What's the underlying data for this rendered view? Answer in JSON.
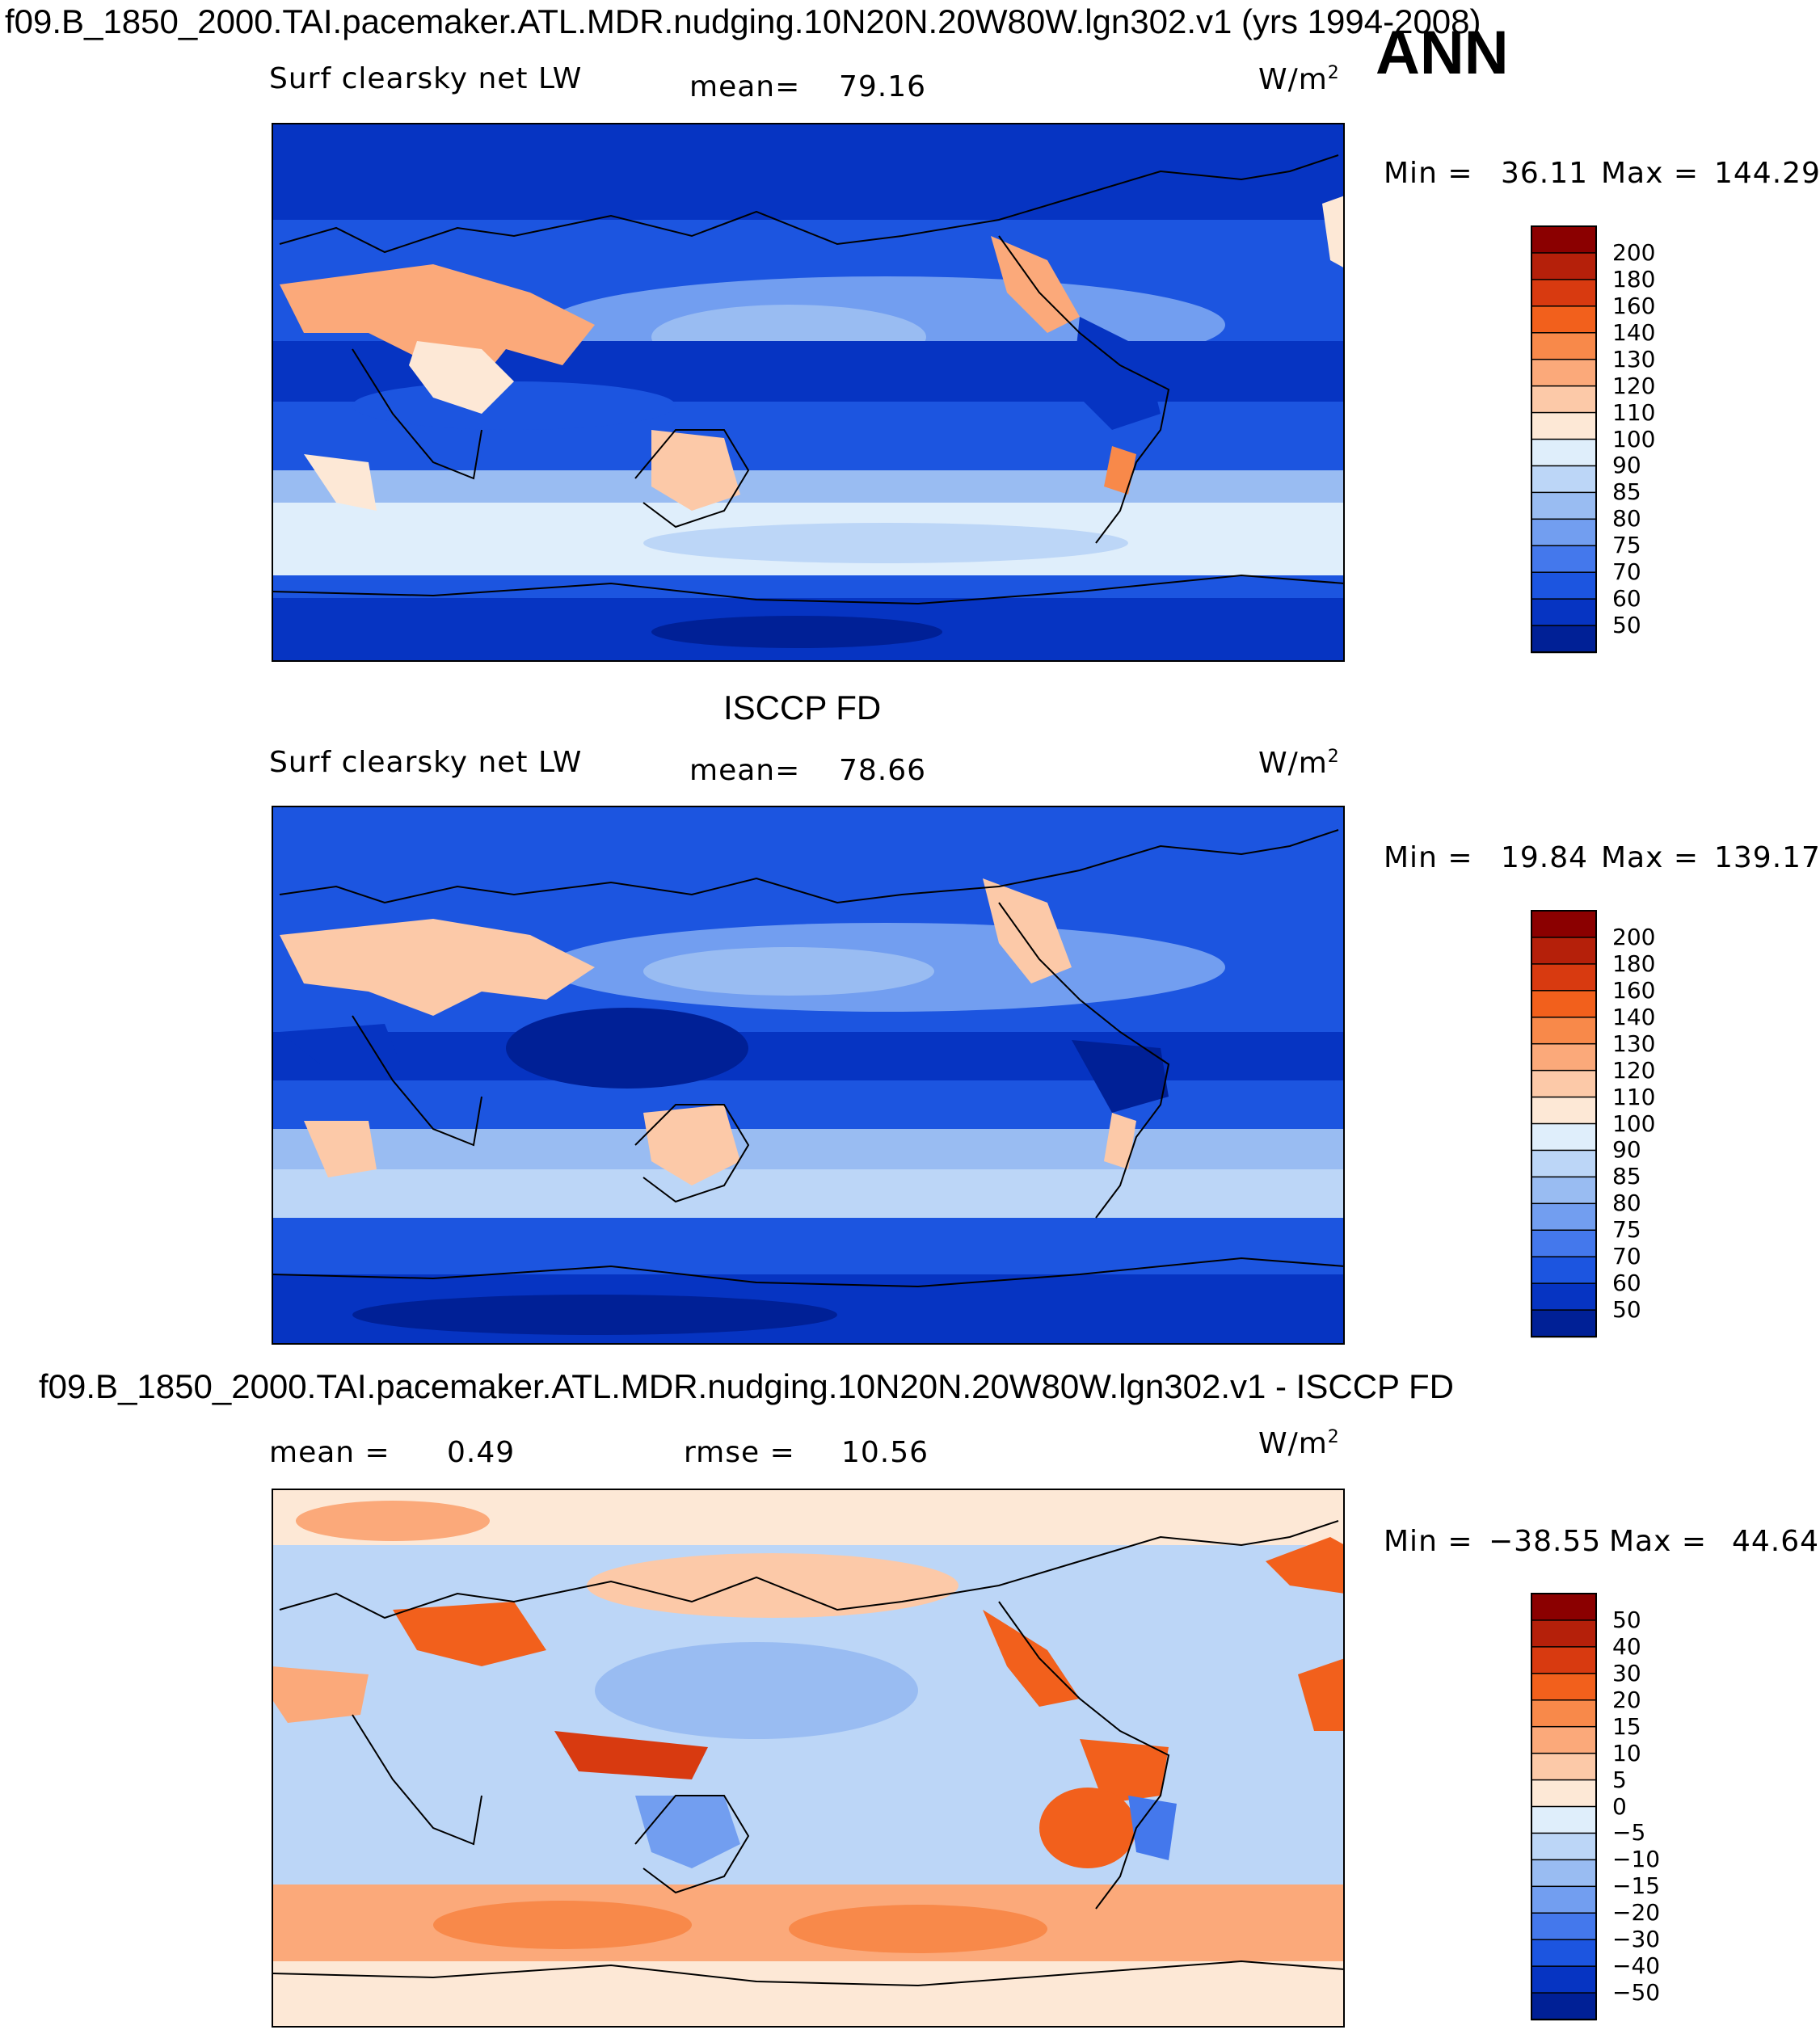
{
  "header": {
    "title": "f09.B_1850_2000.TAI.pacemaker.ATL.MDR.nudging.10N20N.20W80W.lgn302.v1 (yrs 1994-2008)",
    "season": "ANN"
  },
  "chart_data": [
    {
      "type": "heatmap",
      "title": "",
      "variable": "Surf clearsky net LW",
      "mean_label": "mean=",
      "mean": "79.16",
      "units": "W/m",
      "units_sup": "2",
      "min_label": "Min =",
      "min": "36.11",
      "max_label": "Max =",
      "max": "144.29",
      "colorbar": {
        "labels": [
          "200",
          "180",
          "160",
          "140",
          "130",
          "120",
          "110",
          "100",
          "90",
          "85",
          "80",
          "75",
          "70",
          "60",
          "50"
        ],
        "colors": [
          "#8b0000",
          "#b5200a",
          "#d83a10",
          "#f2601c",
          "#f8894a",
          "#fba97a",
          "#fcc9a8",
          "#fde8d6",
          "#dfeefb",
          "#bcd6f7",
          "#99bcf2",
          "#729ef0",
          "#4478ec",
          "#1c55e0",
          "#0634c2",
          "#002096"
        ]
      }
    },
    {
      "type": "heatmap",
      "title": "ISCCP FD",
      "variable": "Surf clearsky net LW",
      "mean_label": "mean=",
      "mean": "78.66",
      "units": "W/m",
      "units_sup": "2",
      "min_label": "Min =",
      "min": "19.84",
      "max_label": "Max =",
      "max": "139.17",
      "colorbar": {
        "labels": [
          "200",
          "180",
          "160",
          "140",
          "130",
          "120",
          "110",
          "100",
          "90",
          "85",
          "80",
          "75",
          "70",
          "60",
          "50"
        ],
        "colors": [
          "#8b0000",
          "#b5200a",
          "#d83a10",
          "#f2601c",
          "#f8894a",
          "#fba97a",
          "#fcc9a8",
          "#fde8d6",
          "#dfeefb",
          "#bcd6f7",
          "#99bcf2",
          "#729ef0",
          "#4478ec",
          "#1c55e0",
          "#0634c2",
          "#002096"
        ]
      }
    },
    {
      "type": "heatmap",
      "title": "f09.B_1850_2000.TAI.pacemaker.ATL.MDR.nudging.10N20N.20W80W.lgn302.v1 - ISCCP FD",
      "mean_label": "mean =",
      "mean": "0.49",
      "rmse_label": "rmse =",
      "rmse": "10.56",
      "units": "W/m",
      "units_sup": "2",
      "min_label": "Min =",
      "min": "−38.55",
      "max_label": "Max =",
      "max": "44.64",
      "colorbar": {
        "labels": [
          "50",
          "40",
          "30",
          "20",
          "15",
          "10",
          "5",
          "0",
          "−5",
          "−10",
          "−15",
          "−20",
          "−30",
          "−40",
          "−50"
        ],
        "colors": [
          "#8b0000",
          "#b5200a",
          "#d83a10",
          "#f2601c",
          "#f8894a",
          "#fba97a",
          "#fcc9a8",
          "#fde8d6",
          "#dfeefb",
          "#bcd6f7",
          "#99bcf2",
          "#729ef0",
          "#4478ec",
          "#1c55e0",
          "#0634c2",
          "#002096"
        ]
      }
    }
  ]
}
